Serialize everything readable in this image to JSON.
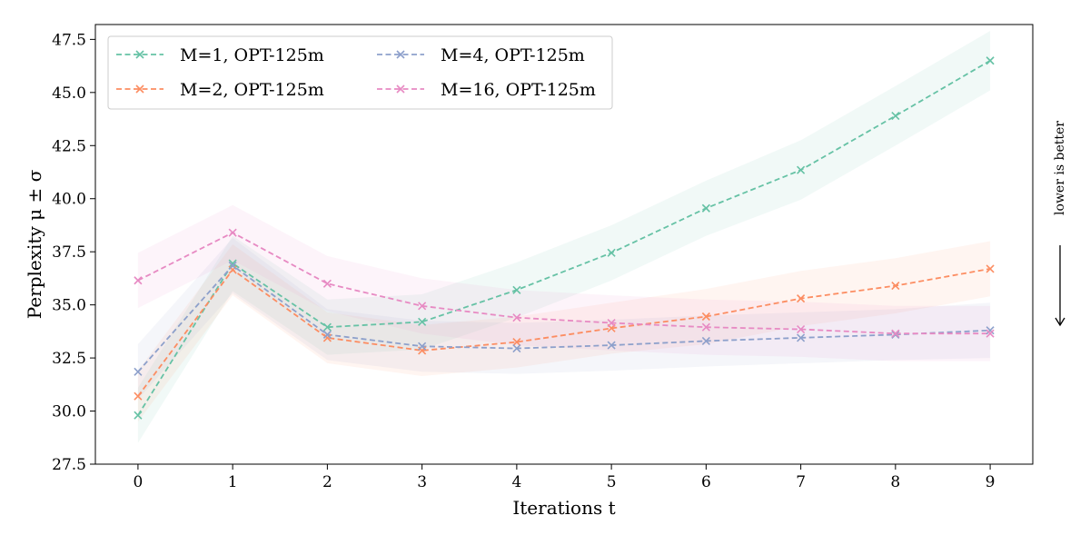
{
  "chart_data": {
    "type": "line",
    "xlabel": "Iterations t",
    "ylabel": "Perplexity μ ± σ",
    "side_annotation": "lower is better",
    "xlim": [
      -0.45,
      9.45
    ],
    "ylim": [
      27.5,
      48.2
    ],
    "x_ticks": [
      0,
      1,
      2,
      3,
      4,
      5,
      6,
      7,
      8,
      9
    ],
    "y_ticks": [
      27.5,
      30.0,
      32.5,
      35.0,
      37.5,
      40.0,
      42.5,
      45.0,
      47.5
    ],
    "legend_position": "top-left",
    "grid": false,
    "x": [
      0,
      1,
      2,
      3,
      4,
      5,
      6,
      7,
      8,
      9
    ],
    "series": [
      {
        "name": "M=1, OPT-125m",
        "color": "#66c2a5",
        "values": [
          29.8,
          36.95,
          33.95,
          34.2,
          35.7,
          37.45,
          39.55,
          41.35,
          43.9,
          46.5
        ],
        "std": [
          1.3,
          1.3,
          1.3,
          1.3,
          1.3,
          1.3,
          1.3,
          1.4,
          1.4,
          1.4
        ]
      },
      {
        "name": "M=2, OPT-125m",
        "color": "#fc8d62",
        "values": [
          30.7,
          36.65,
          33.45,
          32.85,
          33.25,
          33.9,
          34.45,
          35.3,
          35.9,
          36.7
        ],
        "std": [
          1.2,
          1.2,
          1.2,
          1.2,
          1.2,
          1.2,
          1.3,
          1.3,
          1.3,
          1.3
        ]
      },
      {
        "name": "M=4, OPT-125m",
        "color": "#8da0cb",
        "values": [
          31.85,
          36.85,
          33.6,
          33.05,
          32.95,
          33.1,
          33.3,
          33.45,
          33.6,
          33.8
        ],
        "std": [
          1.3,
          1.3,
          1.2,
          1.2,
          1.2,
          1.2,
          1.2,
          1.2,
          1.2,
          1.3
        ]
      },
      {
        "name": "M=16, OPT-125m",
        "color": "#e78ac3",
        "values": [
          36.15,
          38.4,
          36.0,
          34.95,
          34.4,
          34.15,
          33.95,
          33.85,
          33.65,
          33.65
        ],
        "std": [
          1.3,
          1.3,
          1.3,
          1.3,
          1.3,
          1.3,
          1.3,
          1.3,
          1.3,
          1.3
        ]
      }
    ]
  }
}
